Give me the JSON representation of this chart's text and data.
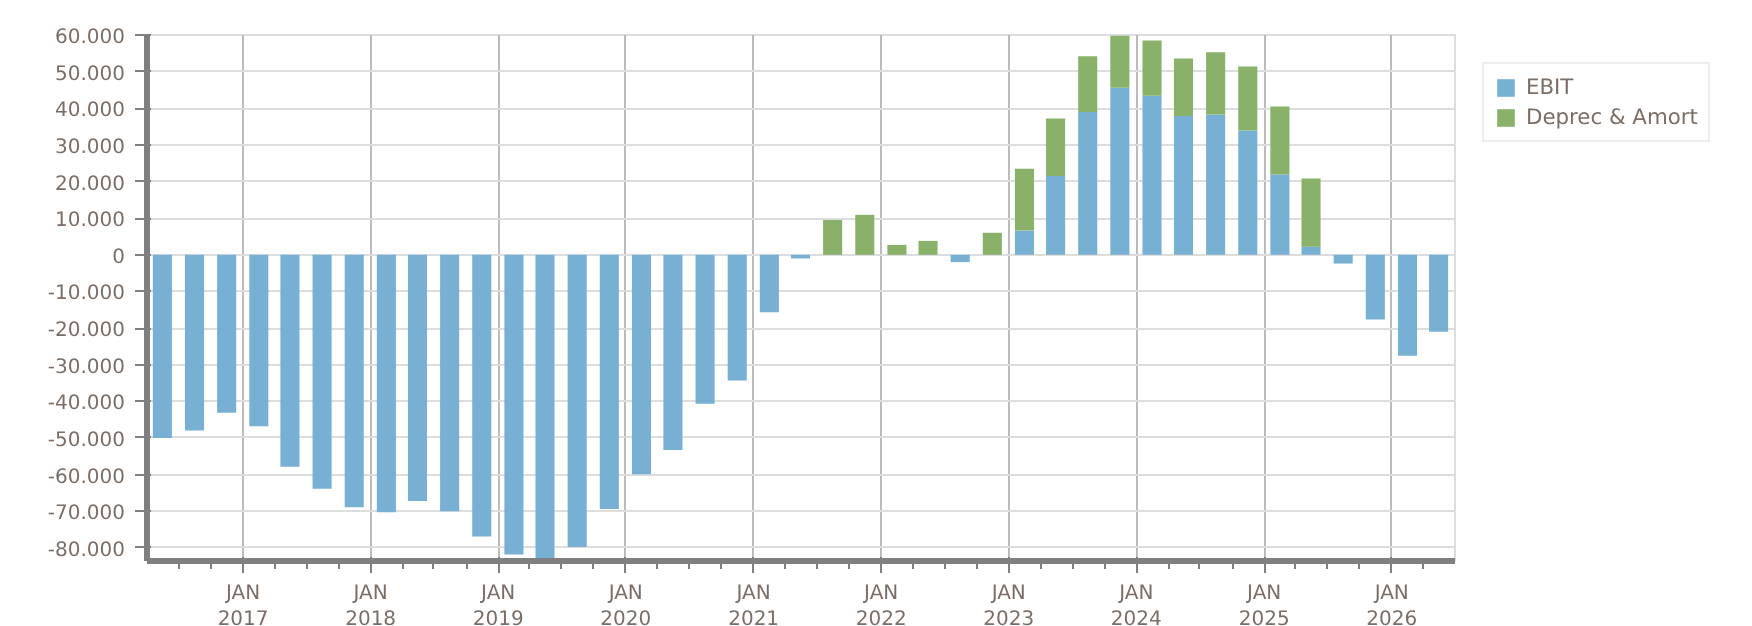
{
  "chart_data": {
    "type": "bar",
    "stacked": true,
    "x": [
      "2016-05-15",
      "2016-08-15",
      "2016-11-15",
      "2017-02-15",
      "2017-05-15",
      "2017-08-15",
      "2017-11-15",
      "2018-02-15",
      "2018-05-15",
      "2018-08-15",
      "2018-11-15",
      "2019-02-15",
      "2019-05-15",
      "2019-08-15",
      "2019-11-15",
      "2020-02-15",
      "2020-05-15",
      "2020-08-15",
      "2020-11-15",
      "2021-02-15",
      "2021-05-15",
      "2021-08-15",
      "2021-11-15",
      "2022-02-15",
      "2022-05-15",
      "2022-08-15",
      "2022-11-15",
      "2023-02-15",
      "2023-05-15",
      "2023-08-15",
      "2023-11-15",
      "2024-02-15",
      "2024-05-15",
      "2024-08-15",
      "2024-11-15",
      "2025-02-15",
      "2025-05-15",
      "2025-08-15",
      "2025-11-15",
      "2026-02-15",
      "2026-05-15"
    ],
    "series": [
      {
        "name": "EBIT",
        "color": "#78b0d3",
        "values": [
          -50000,
          -48000,
          -43100,
          -46800,
          -57900,
          -63900,
          -68900,
          -70300,
          -67200,
          -70000,
          -76900,
          -81800,
          -83500,
          -79800,
          -69400,
          -59900,
          -53300,
          -40700,
          -34300,
          -15700,
          -1000,
          0,
          0,
          0,
          0,
          -2000,
          0,
          6600,
          21500,
          39000,
          45600,
          43400,
          37900,
          38300,
          33900,
          21900,
          2200,
          -2400,
          -17700,
          -27600,
          -21000
        ]
      },
      {
        "name": "Deprec & Amort",
        "color": "#89b16a",
        "values": [
          0,
          0,
          0,
          0,
          0,
          0,
          0,
          0,
          0,
          0,
          0,
          0,
          0,
          0,
          0,
          0,
          0,
          0,
          0,
          0,
          0,
          9500,
          10900,
          2700,
          3800,
          0,
          6000,
          16900,
          15700,
          15200,
          14200,
          15100,
          15700,
          17000,
          17500,
          18600,
          18600,
          0,
          0,
          0,
          0
        ]
      }
    ],
    "xlim": [
      "2016-04-01",
      "2026-07-01"
    ],
    "xticks": [
      {
        "value": "2016-07-01",
        "label": null
      },
      {
        "value": "2016-10-01",
        "label": null
      },
      {
        "value": "2017-01-01",
        "label": "JAN\n2017"
      },
      {
        "value": "2017-04-01",
        "label": null
      },
      {
        "value": "2017-07-01",
        "label": null
      },
      {
        "value": "2017-10-01",
        "label": null
      },
      {
        "value": "2018-01-01",
        "label": "JAN\n2018"
      },
      {
        "value": "2018-04-01",
        "label": null
      },
      {
        "value": "2018-07-01",
        "label": null
      },
      {
        "value": "2018-10-01",
        "label": null
      },
      {
        "value": "2019-01-01",
        "label": "JAN\n2019"
      },
      {
        "value": "2019-04-01",
        "label": null
      },
      {
        "value": "2019-07-01",
        "label": null
      },
      {
        "value": "2019-10-01",
        "label": null
      },
      {
        "value": "2020-01-01",
        "label": "JAN\n2020"
      },
      {
        "value": "2020-04-01",
        "label": null
      },
      {
        "value": "2020-07-01",
        "label": null
      },
      {
        "value": "2020-10-01",
        "label": null
      },
      {
        "value": "2021-01-01",
        "label": "JAN\n2021"
      },
      {
        "value": "2021-04-01",
        "label": null
      },
      {
        "value": "2021-07-01",
        "label": null
      },
      {
        "value": "2021-10-01",
        "label": null
      },
      {
        "value": "2022-01-01",
        "label": "JAN\n2022"
      },
      {
        "value": "2022-04-01",
        "label": null
      },
      {
        "value": "2022-07-01",
        "label": null
      },
      {
        "value": "2022-10-01",
        "label": null
      },
      {
        "value": "2023-01-01",
        "label": "JAN\n2023"
      },
      {
        "value": "2023-04-01",
        "label": null
      },
      {
        "value": "2023-07-01",
        "label": null
      },
      {
        "value": "2023-10-01",
        "label": null
      },
      {
        "value": "2024-01-01",
        "label": "JAN\n2024"
      },
      {
        "value": "2024-04-01",
        "label": null
      },
      {
        "value": "2024-07-01",
        "label": null
      },
      {
        "value": "2024-10-01",
        "label": null
      },
      {
        "value": "2025-01-01",
        "label": "JAN\n2025"
      },
      {
        "value": "2025-04-01",
        "label": null
      },
      {
        "value": "2025-07-01",
        "label": null
      },
      {
        "value": "2025-10-01",
        "label": null
      },
      {
        "value": "2026-01-01",
        "label": "JAN\n2026"
      },
      {
        "value": "2026-04-01",
        "label": null
      }
    ],
    "ylim": [
      -83600,
      60000
    ],
    "yticks": [
      {
        "value": 60000,
        "label": "60.000"
      },
      {
        "value": 50000,
        "label": "50.000"
      },
      {
        "value": 40000,
        "label": "40.000"
      },
      {
        "value": 30000,
        "label": "30.000"
      },
      {
        "value": 20000,
        "label": "20.000"
      },
      {
        "value": 10000,
        "label": "10.000"
      },
      0,
      {
        "value": -10000,
        "label": "-10.000"
      },
      {
        "value": -20000,
        "label": "-20.000"
      },
      {
        "value": -30000,
        "label": "-30.000"
      },
      {
        "value": -40000,
        "label": "-40.000"
      },
      {
        "value": -50000,
        "label": "-50.000"
      },
      {
        "value": -60000,
        "label": "-60.000"
      },
      {
        "value": -70000,
        "label": "-70.000"
      },
      {
        "value": -80000,
        "label": "-80.000"
      }
    ],
    "grid": true,
    "legend": "top right"
  }
}
